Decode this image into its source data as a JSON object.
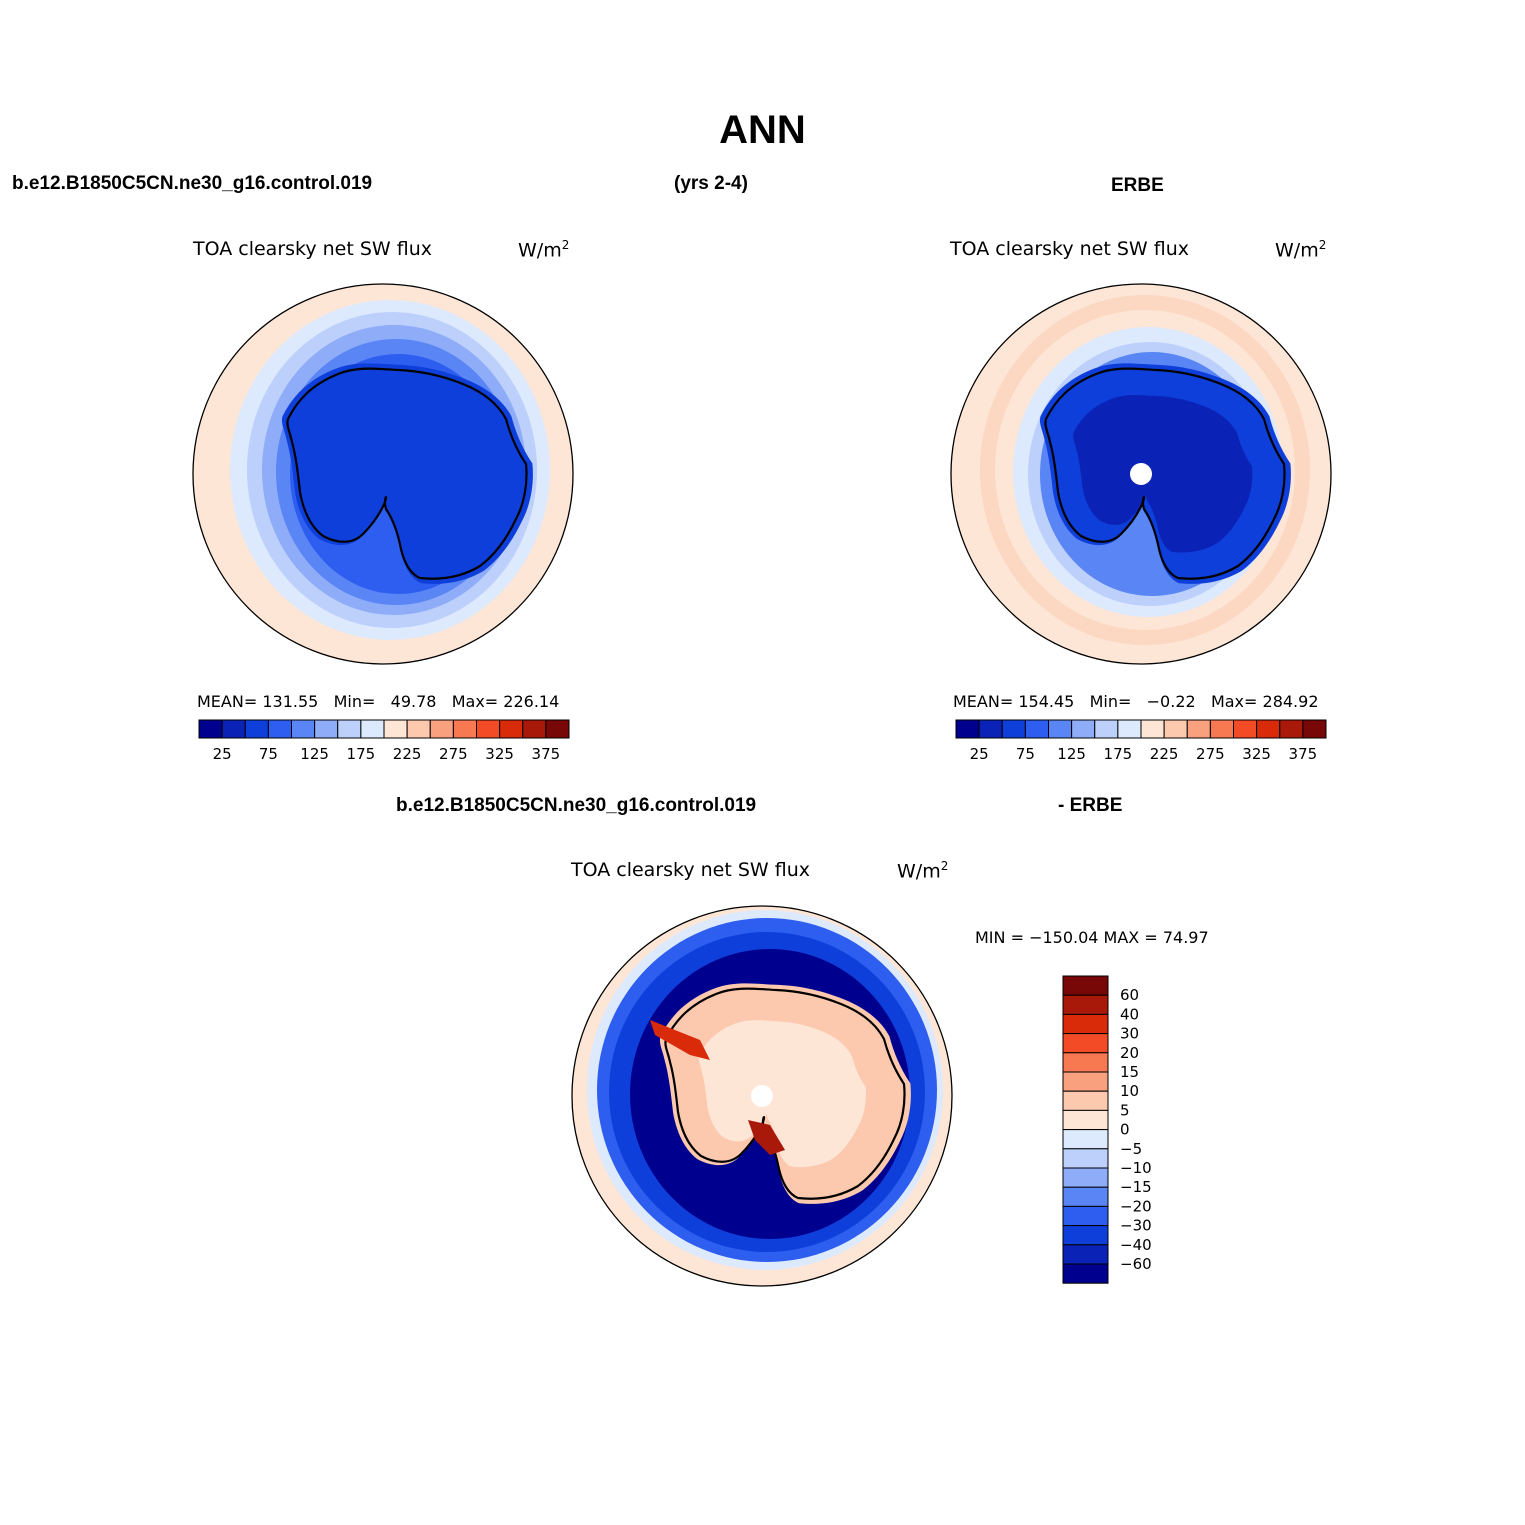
{
  "title": "ANN",
  "panel_top_left": {
    "case": "b.e12.B1850C5CN.ne30_g16.control.019",
    "years": "(yrs 2-4)",
    "field": "TOA clearsky net SW flux",
    "units_base": "W/m",
    "units_exp": "2",
    "mean_label": "MEAN=",
    "mean": "131.55",
    "min_label": "Min=",
    "min": "49.78",
    "max_label": "Max=",
    "max": "226.14"
  },
  "panel_top_right": {
    "case": "ERBE",
    "field": "TOA clearsky net SW flux",
    "units_base": "W/m",
    "units_exp": "2",
    "mean_label": "MEAN=",
    "mean": "154.45",
    "min_label": "Min=",
    "min": "−0.22",
    "max_label": "Max=",
    "max": "284.92"
  },
  "panel_diff": {
    "case": "b.e12.B1850C5CN.ne30_g16.control.019",
    "case2": "- ERBE",
    "field": "TOA clearsky net SW flux",
    "units_base": "W/m",
    "units_exp": "2",
    "minmax": "MIN = −150.04 MAX =   74.97"
  },
  "abs_colorbar": {
    "colors": [
      "#00008f",
      "#0a22b5",
      "#0f3fda",
      "#2d5ef0",
      "#5a86f5",
      "#8eacf8",
      "#bcd0fb",
      "#dde9fd",
      "#fde6d6",
      "#fcc8ae",
      "#f9a07f",
      "#f77952",
      "#f34b25",
      "#d92a0a",
      "#a8190a",
      "#780707"
    ],
    "labels": [
      "25",
      "75",
      "125",
      "175",
      "225",
      "275",
      "325",
      "375"
    ]
  },
  "diff_colorbar": {
    "colors": [
      "#00008f",
      "#0a22b5",
      "#0f3fda",
      "#2d5ef0",
      "#5a86f5",
      "#8eacf8",
      "#bcd0fb",
      "#dde9fd",
      "#fde6d6",
      "#fcc8ae",
      "#f9a07f",
      "#f77952",
      "#f34b25",
      "#d92a0a",
      "#a8190a",
      "#780707"
    ],
    "labels": [
      "−60",
      "−40",
      "−30",
      "−20",
      "−15",
      "−10",
      "−5",
      "0",
      "5",
      "10",
      "15",
      "20",
      "30",
      "40",
      "60"
    ]
  }
}
